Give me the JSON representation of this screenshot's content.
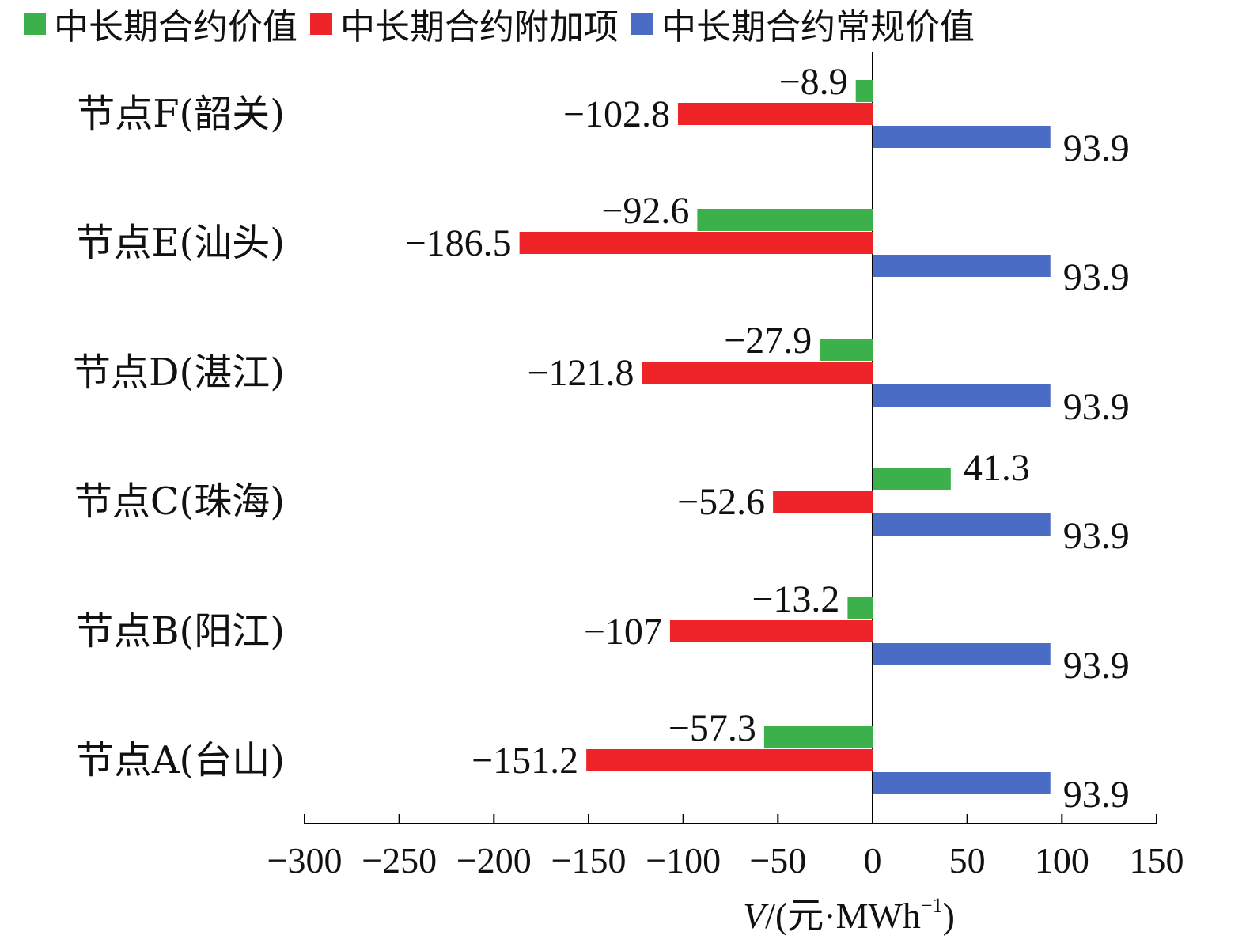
{
  "chart_data": {
    "type": "bar",
    "orientation": "horizontal",
    "categories": [
      "节点F(韶关)",
      "节点E(汕头)",
      "节点D(湛江)",
      "节点C(珠海)",
      "节点B(阳江)",
      "节点A(台山)"
    ],
    "series": [
      {
        "name": "中长期合约价值",
        "color": "#3cb04b",
        "values": [
          -8.9,
          -92.6,
          -27.9,
          41.3,
          -13.2,
          -57.3
        ],
        "labels": [
          "−8.9",
          "−92.6",
          "−27.9",
          "41.3",
          "−13.2",
          "−57.3"
        ]
      },
      {
        "name": "中长期合约附加项",
        "color": "#ee2428",
        "values": [
          -102.8,
          -186.5,
          -121.8,
          -52.6,
          -107,
          -151.2
        ],
        "labels": [
          "−102.8",
          "−186.5",
          "−121.8",
          "−52.6",
          "−107",
          "−151.2"
        ]
      },
      {
        "name": "中长期合约常规价值",
        "color": "#4a6cc4",
        "values": [
          93.9,
          93.9,
          93.9,
          93.9,
          93.9,
          93.9
        ],
        "labels": [
          "93.9",
          "93.9",
          "93.9",
          "93.9",
          "93.9",
          "93.9"
        ]
      }
    ],
    "xlim": [
      -300,
      150
    ],
    "xticks": [
      -300,
      -250,
      -200,
      -150,
      -100,
      -50,
      0,
      50,
      100,
      150
    ],
    "xtick_labels": [
      "−300",
      "−250",
      "−200",
      "−150",
      "−100",
      "−50",
      "0",
      "50",
      "100",
      "150"
    ],
    "xlabel_var": "V",
    "xlabel_unit": "/(元·MWh",
    "xlabel_sup": "−1",
    "xlabel_close": ")",
    "legend_position": "top",
    "grid": false
  }
}
